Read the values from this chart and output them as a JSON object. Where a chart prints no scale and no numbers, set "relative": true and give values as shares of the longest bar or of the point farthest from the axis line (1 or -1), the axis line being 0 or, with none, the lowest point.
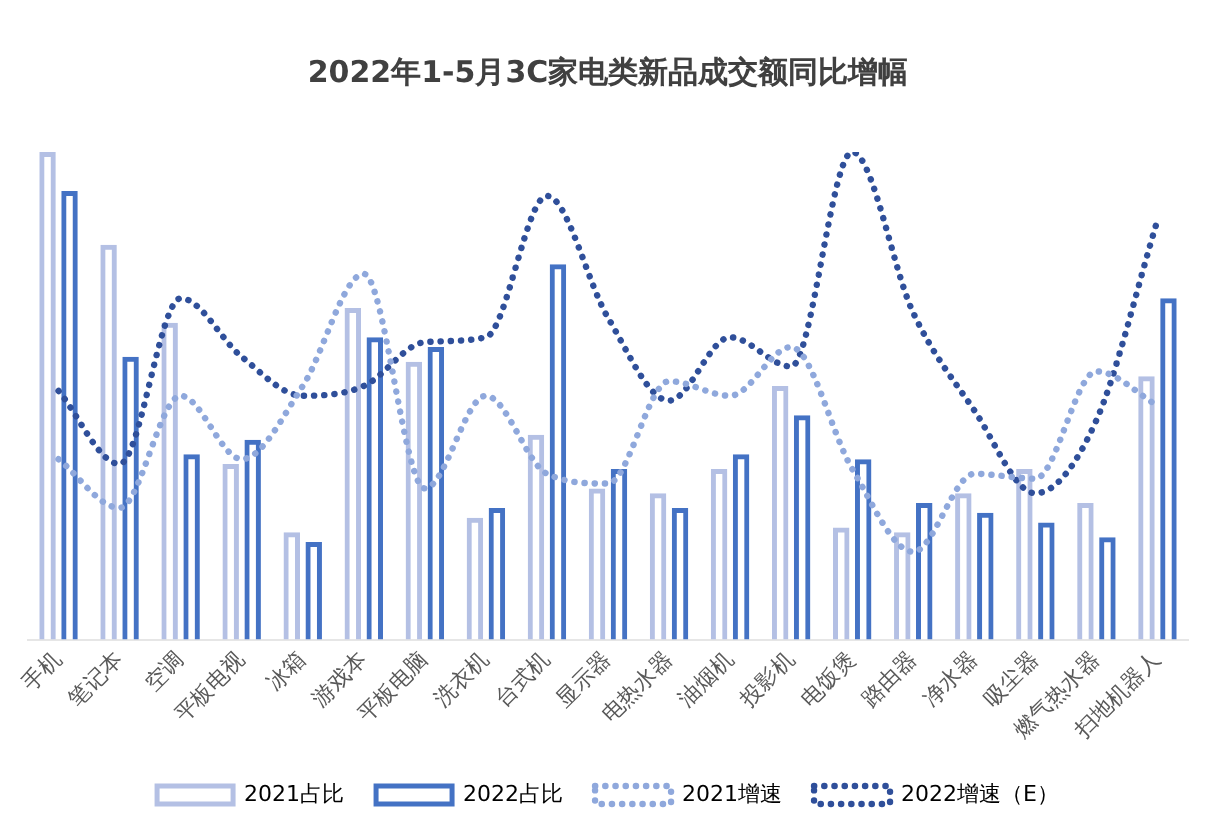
{
  "chart_data": {
    "type": "bar",
    "title": "2022年1-5月3C家电类新品成交额同比增幅",
    "relative": true,
    "legend": "bottom",
    "grid": false,
    "marker": "none",
    "categories": [
      "手机",
      "笔记本",
      "空调",
      "平板电视",
      "冰箱",
      "游戏本",
      "平板电脑",
      "洗衣机",
      "台式机",
      "显示器",
      "电热水器",
      "油烟机",
      "投影机",
      "电饭煲",
      "路由器",
      "净水器",
      "吸尘器",
      "燃气热水器",
      "扫地机器人"
    ],
    "series": [
      {
        "name": "2021占比",
        "color": "#b4c0e4",
        "values": [
          1,
          0.81,
          0.65,
          0.36,
          0.22,
          0.68,
          0.57,
          0.25,
          0.42,
          0.31,
          0.3,
          0.35,
          0.52,
          0.23,
          0.22,
          0.3,
          0.35,
          0.28,
          0.54
        ]
      },
      {
        "name": "2022占比",
        "color": "#4472c4",
        "values": [
          0.92,
          0.58,
          0.38,
          0.41,
          0.2,
          0.62,
          0.6,
          0.27,
          0.77,
          0.35,
          0.27,
          0.38,
          0.46,
          0.37,
          0.28,
          0.26,
          0.24,
          0.21,
          0.7
        ]
      },
      {
        "name": "2021增速",
        "type": "line",
        "line_style": "dotted",
        "color": "#8fa8dc",
        "values": [
          0.37,
          0.27,
          0.5,
          0.37,
          0.52,
          0.75,
          0.31,
          0.5,
          0.34,
          0.32,
          0.53,
          0.5,
          0.6,
          0.35,
          0.18,
          0.34,
          0.33,
          0.55,
          0.48
        ]
      },
      {
        "name": "2022增速（E）",
        "type": "line",
        "line_style": "dotted",
        "color": "#2f4f9a",
        "values": [
          0.51,
          0.36,
          0.7,
          0.58,
          0.5,
          0.52,
          0.61,
          0.62,
          0.91,
          0.66,
          0.49,
          0.62,
          0.56,
          1,
          0.67,
          0.47,
          0.3,
          0.45,
          0.86
        ]
      }
    ]
  }
}
